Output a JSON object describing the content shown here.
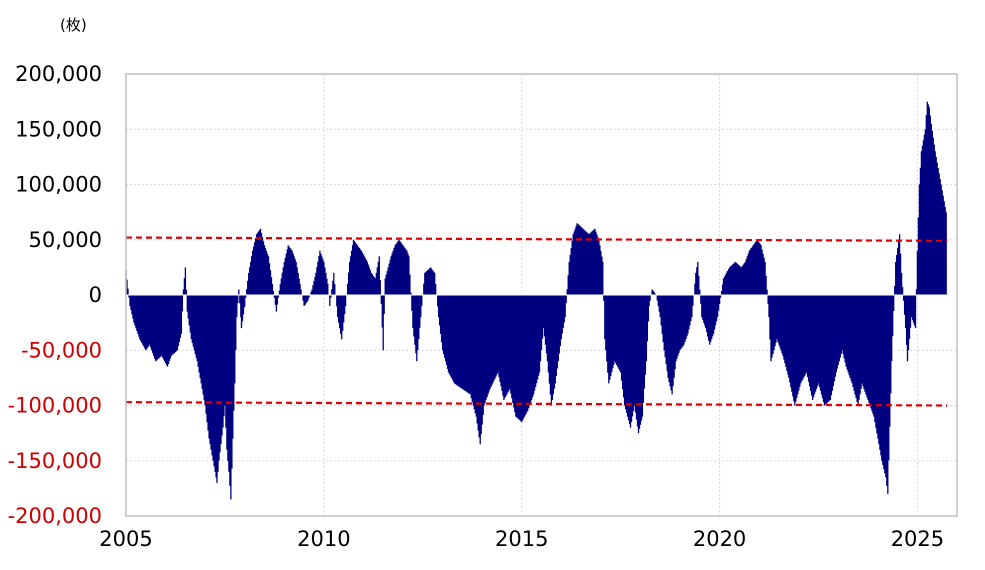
{
  "chart_data": {
    "type": "area",
    "unit_label": "(枚)",
    "title": "",
    "xlabel": "",
    "ylabel": "",
    "xlim": [
      2005,
      2026
    ],
    "ylim": [
      -200000,
      200000
    ],
    "x_ticks": [
      2005,
      2010,
      2015,
      2020,
      2025
    ],
    "y_ticks": [
      {
        "value": 200000,
        "label": "200,000",
        "color": "#000000"
      },
      {
        "value": 150000,
        "label": "150,000",
        "color": "#000000"
      },
      {
        "value": 100000,
        "label": "100,000",
        "color": "#000000"
      },
      {
        "value": 50000,
        "label": "50,000",
        "color": "#000000"
      },
      {
        "value": 0,
        "label": "0",
        "color": "#000000"
      },
      {
        "value": -50000,
        "label": "-50,000",
        "color": "#cc0000"
      },
      {
        "value": -100000,
        "label": "-100,000",
        "color": "#cc0000"
      },
      {
        "value": -150000,
        "label": "-150,000",
        "color": "#cc0000"
      },
      {
        "value": -200000,
        "label": "-200,000",
        "color": "#cc0000"
      }
    ],
    "grid": true,
    "bar_color": "#000080",
    "reference_lines": [
      {
        "x": [
          2005.0,
          2025.75
        ],
        "y": [
          52000,
          49000
        ],
        "color": "#dd0000",
        "style": "dashed"
      },
      {
        "x": [
          2005.0,
          2025.75
        ],
        "y": [
          -97000,
          -100000
        ],
        "color": "#dd0000",
        "style": "dashed"
      }
    ],
    "series": [
      {
        "points": [
          [
            2005.0,
            22000
          ],
          [
            2005.1,
            -10000
          ],
          [
            2005.2,
            -25000
          ],
          [
            2005.35,
            -40000
          ],
          [
            2005.5,
            -50000
          ],
          [
            2005.6,
            -45000
          ],
          [
            2005.75,
            -60000
          ],
          [
            2005.9,
            -55000
          ],
          [
            2006.05,
            -65000
          ],
          [
            2006.15,
            -55000
          ],
          [
            2006.3,
            -50000
          ],
          [
            2006.4,
            -35000
          ],
          [
            2006.45,
            5000
          ],
          [
            2006.5,
            25000
          ],
          [
            2006.55,
            -15000
          ],
          [
            2006.65,
            -40000
          ],
          [
            2006.8,
            -60000
          ],
          [
            2006.9,
            -80000
          ],
          [
            2007.0,
            -100000
          ],
          [
            2007.1,
            -130000
          ],
          [
            2007.2,
            -150000
          ],
          [
            2007.3,
            -170000
          ],
          [
            2007.35,
            -150000
          ],
          [
            2007.45,
            -120000
          ],
          [
            2007.5,
            -100000
          ],
          [
            2007.55,
            -140000
          ],
          [
            2007.6,
            -160000
          ],
          [
            2007.65,
            -185000
          ],
          [
            2007.7,
            -130000
          ],
          [
            2007.75,
            -80000
          ],
          [
            2007.8,
            -20000
          ],
          [
            2007.85,
            5000
          ],
          [
            2007.92,
            -30000
          ],
          [
            2008.0,
            -10000
          ],
          [
            2008.1,
            20000
          ],
          [
            2008.2,
            40000
          ],
          [
            2008.3,
            55000
          ],
          [
            2008.4,
            60000
          ],
          [
            2008.5,
            45000
          ],
          [
            2008.6,
            35000
          ],
          [
            2008.7,
            10000
          ],
          [
            2008.8,
            -15000
          ],
          [
            2008.9,
            10000
          ],
          [
            2009.0,
            30000
          ],
          [
            2009.1,
            45000
          ],
          [
            2009.2,
            40000
          ],
          [
            2009.3,
            30000
          ],
          [
            2009.4,
            10000
          ],
          [
            2009.5,
            -10000
          ],
          [
            2009.6,
            -5000
          ],
          [
            2009.7,
            5000
          ],
          [
            2009.8,
            20000
          ],
          [
            2009.9,
            40000
          ],
          [
            2010.0,
            30000
          ],
          [
            2010.1,
            10000
          ],
          [
            2010.15,
            -10000
          ],
          [
            2010.25,
            20000
          ],
          [
            2010.35,
            -20000
          ],
          [
            2010.45,
            -40000
          ],
          [
            2010.55,
            -10000
          ],
          [
            2010.65,
            30000
          ],
          [
            2010.75,
            50000
          ],
          [
            2010.85,
            45000
          ],
          [
            2010.95,
            40000
          ],
          [
            2011.1,
            30000
          ],
          [
            2011.2,
            20000
          ],
          [
            2011.3,
            15000
          ],
          [
            2011.4,
            35000
          ],
          [
            2011.5,
            -50000
          ],
          [
            2011.55,
            15000
          ],
          [
            2011.7,
            35000
          ],
          [
            2011.8,
            45000
          ],
          [
            2011.9,
            50000
          ],
          [
            2012.0,
            45000
          ],
          [
            2012.1,
            40000
          ],
          [
            2012.15,
            35000
          ],
          [
            2012.25,
            -30000
          ],
          [
            2012.35,
            -60000
          ],
          [
            2012.45,
            -20000
          ],
          [
            2012.55,
            20000
          ],
          [
            2012.7,
            25000
          ],
          [
            2012.8,
            20000
          ],
          [
            2012.9,
            -20000
          ],
          [
            2013.0,
            -50000
          ],
          [
            2013.15,
            -70000
          ],
          [
            2013.3,
            -80000
          ],
          [
            2013.5,
            -85000
          ],
          [
            2013.7,
            -90000
          ],
          [
            2013.85,
            -110000
          ],
          [
            2013.95,
            -135000
          ],
          [
            2014.05,
            -100000
          ],
          [
            2014.2,
            -85000
          ],
          [
            2014.4,
            -70000
          ],
          [
            2014.55,
            -95000
          ],
          [
            2014.7,
            -85000
          ],
          [
            2014.85,
            -110000
          ],
          [
            2015.0,
            -115000
          ],
          [
            2015.15,
            -105000
          ],
          [
            2015.3,
            -90000
          ],
          [
            2015.45,
            -70000
          ],
          [
            2015.55,
            -30000
          ],
          [
            2015.65,
            -60000
          ],
          [
            2015.75,
            -100000
          ],
          [
            2015.85,
            -80000
          ],
          [
            2016.0,
            -40000
          ],
          [
            2016.1,
            -20000
          ],
          [
            2016.2,
            30000
          ],
          [
            2016.3,
            55000
          ],
          [
            2016.4,
            65000
          ],
          [
            2016.55,
            60000
          ],
          [
            2016.7,
            55000
          ],
          [
            2016.85,
            60000
          ],
          [
            2016.95,
            50000
          ],
          [
            2017.05,
            30000
          ],
          [
            2017.1,
            -40000
          ],
          [
            2017.2,
            -80000
          ],
          [
            2017.35,
            -60000
          ],
          [
            2017.5,
            -70000
          ],
          [
            2017.6,
            -100000
          ],
          [
            2017.75,
            -120000
          ],
          [
            2017.85,
            -100000
          ],
          [
            2017.95,
            -125000
          ],
          [
            2018.05,
            -110000
          ],
          [
            2018.15,
            -60000
          ],
          [
            2018.22,
            -10000
          ],
          [
            2018.3,
            5000
          ],
          [
            2018.4,
            0
          ],
          [
            2018.5,
            -20000
          ],
          [
            2018.6,
            -50000
          ],
          [
            2018.7,
            -75000
          ],
          [
            2018.8,
            -90000
          ],
          [
            2018.9,
            -60000
          ],
          [
            2019.0,
            -50000
          ],
          [
            2019.1,
            -45000
          ],
          [
            2019.2,
            -35000
          ],
          [
            2019.3,
            -20000
          ],
          [
            2019.4,
            20000
          ],
          [
            2019.45,
            30000
          ],
          [
            2019.55,
            -20000
          ],
          [
            2019.65,
            -30000
          ],
          [
            2019.75,
            -45000
          ],
          [
            2019.85,
            -35000
          ],
          [
            2019.95,
            -20000
          ],
          [
            2020.1,
            15000
          ],
          [
            2020.25,
            25000
          ],
          [
            2020.4,
            30000
          ],
          [
            2020.55,
            25000
          ],
          [
            2020.65,
            30000
          ],
          [
            2020.75,
            40000
          ],
          [
            2020.85,
            45000
          ],
          [
            2020.95,
            50000
          ],
          [
            2021.05,
            45000
          ],
          [
            2021.15,
            30000
          ],
          [
            2021.25,
            -20000
          ],
          [
            2021.3,
            -60000
          ],
          [
            2021.45,
            -40000
          ],
          [
            2021.6,
            -55000
          ],
          [
            2021.75,
            -75000
          ],
          [
            2021.9,
            -100000
          ],
          [
            2022.05,
            -80000
          ],
          [
            2022.2,
            -70000
          ],
          [
            2022.35,
            -95000
          ],
          [
            2022.5,
            -80000
          ],
          [
            2022.65,
            -100000
          ],
          [
            2022.8,
            -95000
          ],
          [
            2022.95,
            -70000
          ],
          [
            2023.1,
            -50000
          ],
          [
            2023.2,
            -65000
          ],
          [
            2023.35,
            -80000
          ],
          [
            2023.5,
            -100000
          ],
          [
            2023.6,
            -80000
          ],
          [
            2023.75,
            -95000
          ],
          [
            2023.9,
            -110000
          ],
          [
            2024.0,
            -130000
          ],
          [
            2024.1,
            -150000
          ],
          [
            2024.2,
            -165000
          ],
          [
            2024.25,
            -180000
          ],
          [
            2024.35,
            -60000
          ],
          [
            2024.45,
            30000
          ],
          [
            2024.55,
            55000
          ],
          [
            2024.6,
            20000
          ],
          [
            2024.7,
            -30000
          ],
          [
            2024.75,
            -60000
          ],
          [
            2024.85,
            -20000
          ],
          [
            2024.95,
            -30000
          ],
          [
            2025.0,
            40000
          ],
          [
            2025.05,
            100000
          ],
          [
            2025.1,
            130000
          ],
          [
            2025.2,
            150000
          ],
          [
            2025.25,
            175000
          ],
          [
            2025.3,
            170000
          ],
          [
            2025.35,
            155000
          ],
          [
            2025.45,
            130000
          ],
          [
            2025.55,
            110000
          ],
          [
            2025.65,
            90000
          ],
          [
            2025.75,
            70000
          ]
        ]
      }
    ]
  }
}
